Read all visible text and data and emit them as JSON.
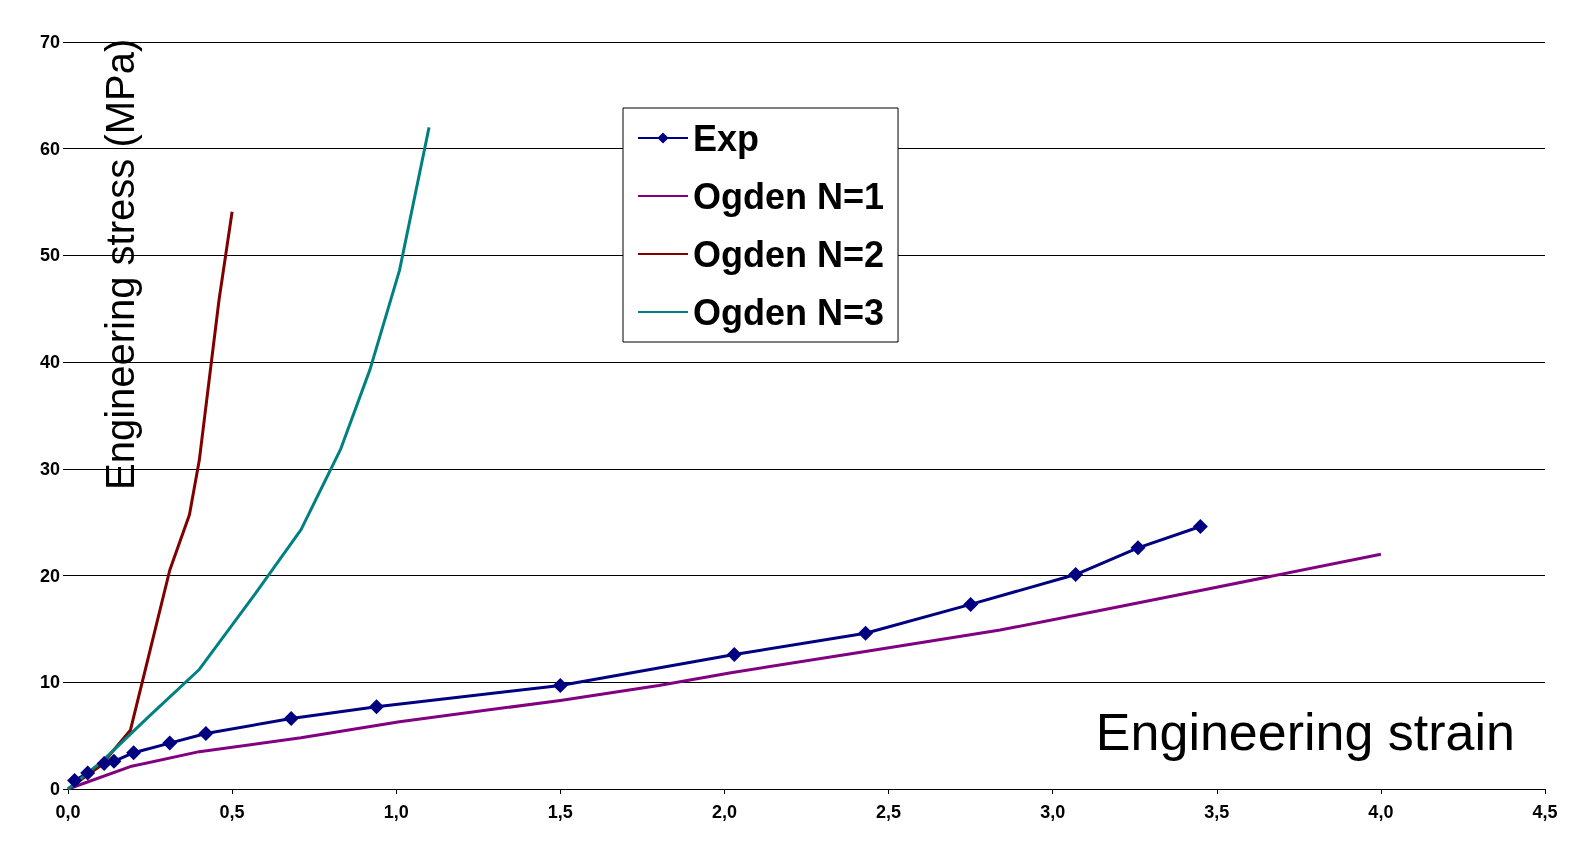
{
  "chart_data": {
    "type": "line",
    "xlabel": "Engineering strain",
    "ylabel": "Engineering stress (MPa)",
    "xlim": [
      0,
      4.5
    ],
    "xticks": [
      {
        "value": 0,
        "label": "0,0"
      },
      {
        "value": 0.5,
        "label": "0,5"
      },
      {
        "value": 1,
        "label": "1,0"
      },
      {
        "value": 1.5,
        "label": "1,5"
      },
      {
        "value": 2,
        "label": "2,0"
      },
      {
        "value": 2.5,
        "label": "2,5"
      },
      {
        "value": 3,
        "label": "3,0"
      },
      {
        "value": 3.5,
        "label": "3,5"
      },
      {
        "value": 4,
        "label": "4,0"
      },
      {
        "value": 4.5,
        "label": "4,5"
      }
    ],
    "ylim": [
      0,
      70
    ],
    "yticks": [
      0,
      10,
      20,
      30,
      40,
      50,
      60,
      70
    ],
    "grid": "y",
    "legend": "top",
    "line_style": "solid",
    "series": [
      {
        "name": "Exp",
        "color": "#000080",
        "marker": "diamond",
        "x": [
          0.02,
          0.06,
          0.11,
          0.14,
          0.2,
          0.31,
          0.42,
          0.68,
          0.94,
          1.5,
          2.03,
          2.43,
          2.75,
          3.07,
          3.26,
          3.45
        ],
        "values": [
          0.8,
          1.5,
          2.4,
          2.6,
          3.4,
          4.3,
          5.2,
          6.6,
          7.7,
          9.7,
          12.6,
          14.6,
          17.3,
          20.1,
          22.6,
          24.6
        ]
      },
      {
        "name": "Ogden N=1",
        "color": "#800080",
        "marker": "none",
        "x": [
          0,
          0.19,
          0.4,
          0.71,
          1.01,
          1.5,
          1.8,
          2.02,
          2.41,
          2.84,
          3.14,
          3.45,
          4.0
        ],
        "values": [
          0,
          2.1,
          3.5,
          4.8,
          6.3,
          8.3,
          9.7,
          10.9,
          12.8,
          14.9,
          16.7,
          18.6,
          22.0
        ]
      },
      {
        "name": "Ogden N=2",
        "color": "#800000",
        "marker": "none",
        "x": [
          0,
          0.1,
          0.19,
          0.25,
          0.31,
          0.37,
          0.4,
          0.43,
          0.46,
          0.5
        ],
        "values": [
          0,
          2.2,
          5.5,
          13,
          20.5,
          25.7,
          30.8,
          38.3,
          45.8,
          54.1
        ]
      },
      {
        "name": "Ogden N=3",
        "color": "#008080",
        "marker": "none",
        "x": [
          0,
          0.1,
          0.25,
          0.4,
          0.58,
          0.71,
          0.83,
          0.92,
          1.01,
          1.1
        ],
        "values": [
          0,
          2.5,
          6.9,
          11.2,
          18.7,
          24.3,
          31.8,
          39.3,
          48.6,
          62
        ]
      }
    ]
  }
}
